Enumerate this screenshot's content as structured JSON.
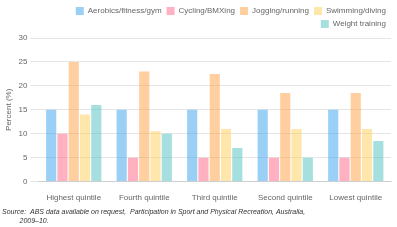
{
  "chart_data": {
    "type": "bar",
    "categories": [
      "Highest quintile",
      "Fourth quintile",
      "Third quintile",
      "Second quintile",
      "Lowest quintile"
    ],
    "series": [
      {
        "name": "Aerobics/fitness/gym",
        "values": [
          15.0,
          15.0,
          15.0,
          15.0,
          15.0
        ]
      },
      {
        "name": "Cycling/BMXing",
        "values": [
          10.0,
          5.0,
          5.0,
          5.0,
          5.0
        ]
      },
      {
        "name": "Jogging/running",
        "values": [
          25.0,
          23.0,
          22.5,
          18.5,
          18.5
        ]
      },
      {
        "name": "Swimming/diving",
        "values": [
          14.0,
          10.5,
          11.0,
          11.0,
          11.0
        ]
      },
      {
        "name": "Weight training",
        "values": [
          16.0,
          10.0,
          7.0,
          5.0,
          8.5
        ]
      }
    ],
    "ylabel": "Percent (%)",
    "ylim": [
      0,
      30
    ],
    "yticks": [
      0,
      5,
      10,
      15,
      20,
      25,
      30
    ],
    "grid": true,
    "legend": "upper right",
    "annotations": [
      "Source:  ABS data available on request,  Participation in Sport and Physical Recreation, Australia,",
      "         2009–10."
    ]
  }
}
